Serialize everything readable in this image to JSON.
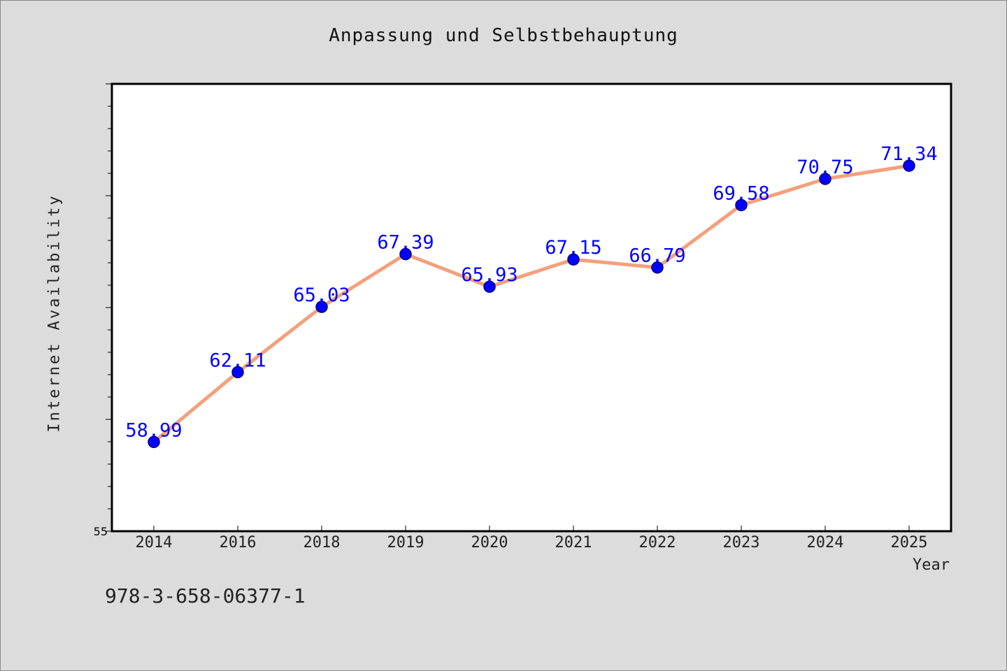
{
  "chart_data": {
    "type": "line",
    "title": "Anpassung und Selbstbehauptung",
    "xlabel": "Year",
    "ylabel": "Internet Availability",
    "categories": [
      "2014",
      "2016",
      "2018",
      "2019",
      "2020",
      "2021",
      "2022",
      "2023",
      "2024",
      "2025"
    ],
    "series": [
      {
        "values": [
          58.99,
          62.11,
          65.03,
          67.39,
          65.93,
          67.15,
          66.79,
          69.58,
          70.75,
          71.34
        ],
        "labels": [
          "58.99",
          "62.11",
          "65.03",
          "67.39",
          "65.93",
          "67.15",
          "66.79",
          "69.58",
          "70.75",
          "71.34"
        ]
      }
    ],
    "ylim": [
      55,
      75
    ],
    "y_tick_labels": [
      "55"
    ],
    "grid": false,
    "colors": {
      "line": "#f4a07c",
      "marker": "#0000ff",
      "label": "#0000ff",
      "plot_background": "#ffffff",
      "page_background": "#dcdcdc"
    }
  },
  "footer": {
    "code": "978-3-658-06377-1"
  }
}
